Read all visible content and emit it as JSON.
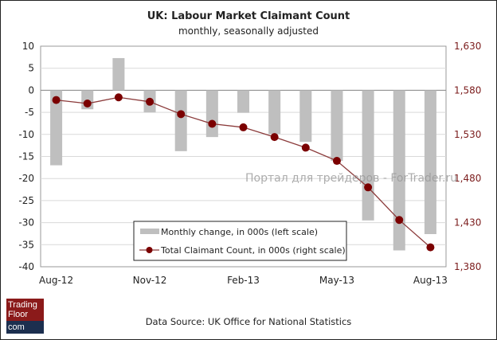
{
  "chart_data": {
    "type": "bar+line",
    "title": "UK: Labour Market Claimant Count",
    "subtitle": "monthly, seasonally adjusted",
    "categories": [
      "Aug-12",
      "Sep-12",
      "Oct-12",
      "Nov-12",
      "Dec-12",
      "Jan-13",
      "Feb-13",
      "Mar-13",
      "Apr-13",
      "May-13",
      "Jun-13",
      "Jul-13",
      "Aug-13"
    ],
    "x_tick_labels": [
      "Aug-12",
      "Nov-12",
      "Feb-13",
      "May-13",
      "Aug-13"
    ],
    "series": [
      {
        "name": "Monthly change, in 000s (left scale)",
        "type": "bar",
        "axis": "left",
        "color": "#bfbfbf",
        "values": [
          -17.0,
          -4.3,
          7.3,
          -5.0,
          -13.8,
          -10.6,
          -5.1,
          -9.9,
          -11.7,
          -16.0,
          -29.5,
          -36.3,
          -32.6
        ]
      },
      {
        "name": "Total Claimant Count, in 000s (right scale)",
        "type": "line",
        "axis": "right",
        "color": "#7b0000",
        "values": [
          1569,
          1565,
          1572,
          1567,
          1553,
          1542,
          1538,
          1527,
          1515,
          1500,
          1470,
          1433,
          1402
        ]
      }
    ],
    "left_axis": {
      "ylim": [
        -40,
        10
      ],
      "ticks": [
        "10",
        "5",
        "0",
        "-5",
        "-10",
        "-15",
        "-20",
        "-25",
        "-30",
        "-35",
        "-40"
      ]
    },
    "right_axis": {
      "ylim": [
        1380,
        1630
      ],
      "ticks": [
        "1,630",
        "1,580",
        "1,530",
        "1,480",
        "1,430",
        "1,380"
      ],
      "color": "#7b1c1c"
    },
    "grid": true,
    "legend_placement": "bottom-center"
  },
  "watermark": "Портал для трейдеров - ForTrader.ru",
  "source": "Data Source: UK Office for National Statistics",
  "logo": {
    "line1": "Trading",
    "line2": "Floor",
    "line3": "com"
  }
}
